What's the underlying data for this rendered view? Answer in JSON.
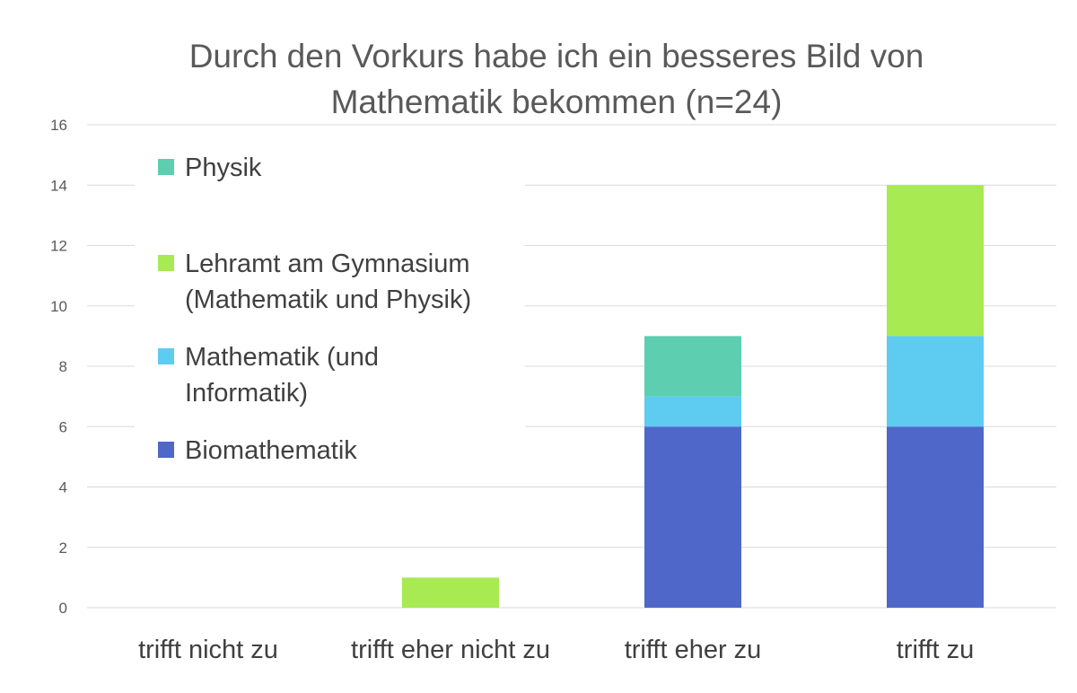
{
  "chart_data": {
    "type": "bar",
    "stacked": true,
    "title": [
      "Durch den Vorkurs habe ich ein besseres Bild von",
      "Mathematik bekommen (n=24)"
    ],
    "categories": [
      "trifft nicht zu",
      "trifft eher nicht zu",
      "trifft eher zu",
      "trifft zu"
    ],
    "ylim": [
      0,
      16
    ],
    "yticks": [
      "0",
      "2",
      "4",
      "6",
      "8",
      "10",
      "12",
      "14",
      "16"
    ],
    "grid": true,
    "legend_position": "left, inside plot",
    "series": [
      {
        "name": "Biomathematik",
        "color": "#4e67c8",
        "values": [
          0,
          0,
          6,
          6
        ]
      },
      {
        "name": "Mathematik (und Informatik)",
        "color": "#5ecbf0",
        "values": [
          0,
          0,
          1,
          3
        ]
      },
      {
        "name": "Lehramt am Gymnasium (Mathematik und Physik)",
        "color": "#a7ea52",
        "values": [
          0,
          1,
          0,
          5
        ]
      },
      {
        "name": "Physik",
        "color": "#5dceaf",
        "values": [
          0,
          0,
          2,
          0
        ]
      }
    ],
    "legend": [
      {
        "series": 3,
        "lines": [
          "Physik"
        ]
      },
      {
        "series": 2,
        "lines": [
          "Lehramt am Gymnasium",
          "(Mathematik und Physik)"
        ]
      },
      {
        "series": 1,
        "lines": [
          "Mathematik (und",
          "Informatik)"
        ]
      },
      {
        "series": 0,
        "lines": [
          "Biomathematik"
        ]
      }
    ]
  }
}
